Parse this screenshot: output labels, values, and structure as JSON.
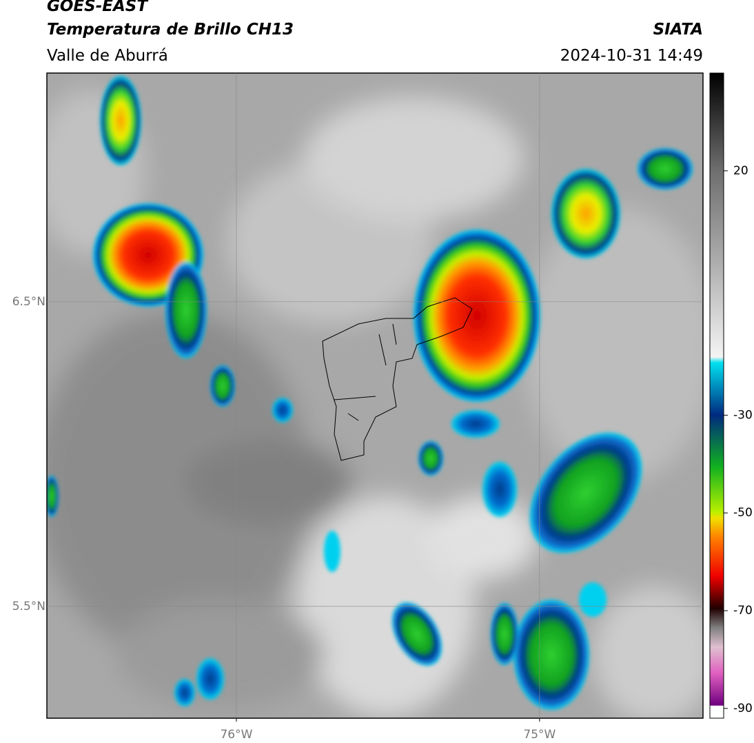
{
  "header": {
    "title": "GOES-EAST",
    "subtitle": "Temperatura de Brillo CH13",
    "region": "Valle de Aburrá",
    "source": "SIATA",
    "datetime": "2024-10-31 14:49"
  },
  "map": {
    "xlim": [
      -76.625,
      -74.461
    ],
    "ylim": [
      5.133,
      7.251
    ],
    "xticks": [
      {
        "value": -76,
        "label": "76°W"
      },
      {
        "value": -75,
        "label": "75°W"
      }
    ],
    "yticks": [
      {
        "value": 6.5,
        "label": "6.5°N"
      },
      {
        "value": 5.5,
        "label": "5.5°N"
      }
    ],
    "grid": true
  },
  "colorbar": {
    "lim": [
      -92,
      40
    ],
    "ticks": [
      20,
      -30,
      -50,
      -70,
      -90
    ]
  }
}
